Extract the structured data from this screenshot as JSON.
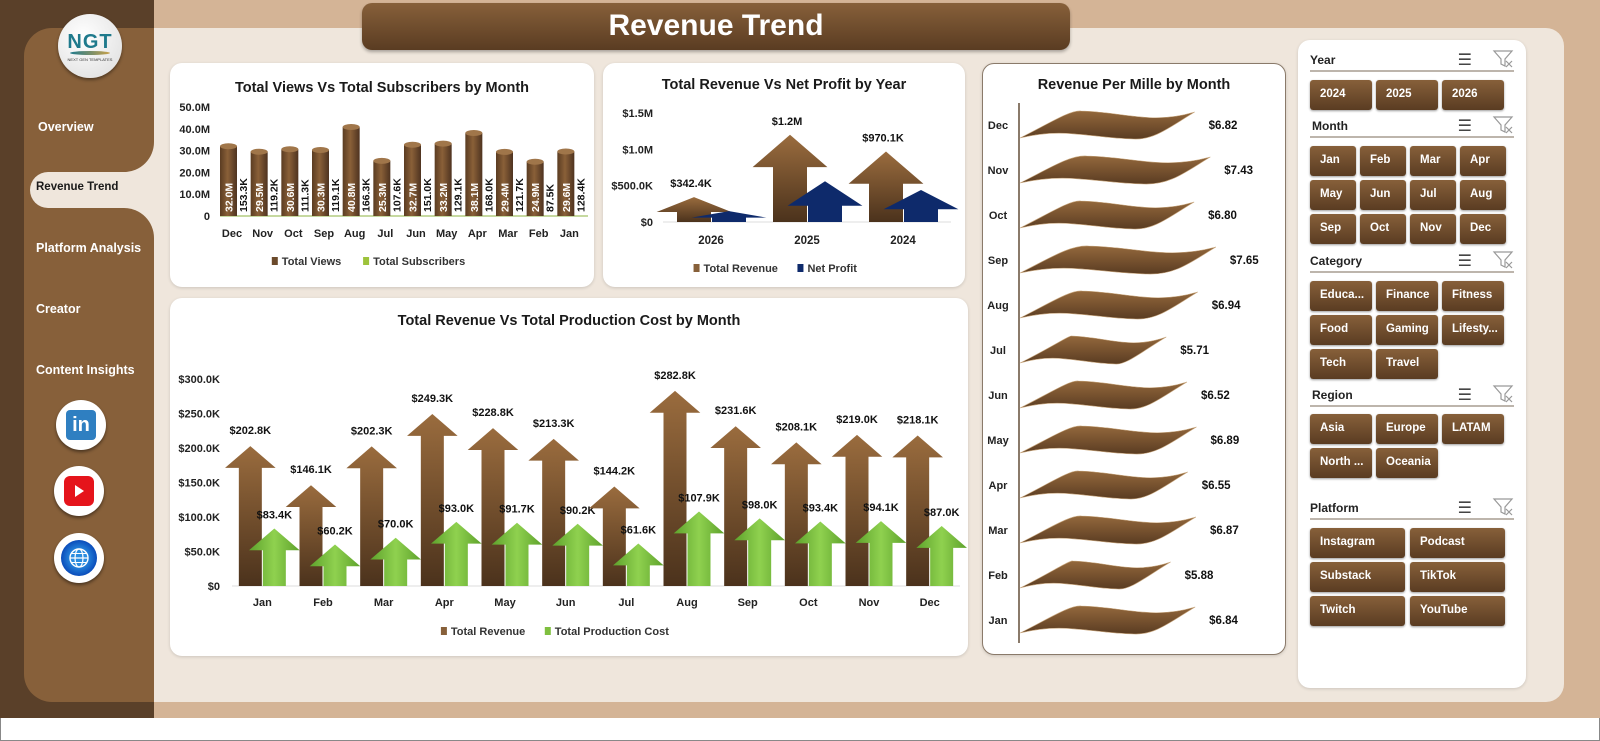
{
  "header": {
    "title": "Revenue Trend"
  },
  "logo": {
    "text": "NGT",
    "subtext": "NEXT GEN TEMPLATES"
  },
  "sidebar": {
    "items": [
      {
        "label": "Overview",
        "active": false
      },
      {
        "label": "Revenue Trend",
        "active": true
      },
      {
        "label": "Platform Analysis",
        "active": false
      },
      {
        "label": "Creator",
        "active": false
      },
      {
        "label": "Content Insights",
        "active": false
      }
    ],
    "social": [
      {
        "icon": "linkedin-icon",
        "label": "in"
      },
      {
        "icon": "youtube-icon"
      },
      {
        "icon": "globe-icon"
      }
    ]
  },
  "colors": {
    "brown": "#87603a",
    "dark_brown": "#5a3c22",
    "green": "#7fbf3f",
    "navy": "#0e2a6b",
    "bg": "#efe6dc"
  },
  "chart_data": [
    {
      "id": "views_subs",
      "type": "bar",
      "title": "Total Views Vs Total Subscribers by Month",
      "categories": [
        "Dec",
        "Nov",
        "Oct",
        "Sep",
        "Aug",
        "Jul",
        "Jun",
        "May",
        "Apr",
        "Mar",
        "Feb",
        "Jan"
      ],
      "series": [
        {
          "name": "Total Views",
          "values": [
            32.0,
            29.5,
            30.6,
            30.3,
            40.8,
            25.3,
            32.7,
            33.2,
            38.1,
            29.4,
            24.9,
            29.6
          ],
          "labels": [
            "32.0M",
            "29.5M",
            "30.6M",
            "30.3M",
            "40.8M",
            "25.3M",
            "32.7M",
            "33.2M",
            "38.1M",
            "29.4M",
            "24.9M",
            "29.6M"
          ],
          "unit": "M",
          "color": "#6b4a2b"
        },
        {
          "name": "Total Subscribers",
          "values": [
            153.3,
            119.2,
            111.3,
            119.1,
            166.3,
            107.6,
            151.0,
            129.1,
            168.0,
            121.7,
            87.5,
            128.4
          ],
          "labels": [
            "153.3K",
            "119.2K",
            "111.3K",
            "119.1K",
            "166.3K",
            "107.6K",
            "151.0K",
            "129.1K",
            "168.0K",
            "121.7K",
            "87.5K",
            "128.4K"
          ],
          "unit": "K",
          "color": "#9dc33b"
        }
      ],
      "yticks": [
        "50.0M",
        "40.0M",
        "30.0M",
        "20.0M",
        "10.0M",
        "0"
      ],
      "ylim": [
        0,
        50
      ],
      "legend_position": "bottom"
    },
    {
      "id": "rev_profit_year",
      "type": "bar",
      "title": "Total Revenue  Vs Net Profit by Year",
      "categories": [
        "2026",
        "2025",
        "2024"
      ],
      "series": [
        {
          "name": "Total Revenue",
          "values": [
            342.4,
            1200,
            970.1
          ],
          "labels": [
            "$342.4K",
            "$1.2M",
            "$970.1K"
          ],
          "color": "#87603a"
        },
        {
          "name": "Net Profit",
          "values": [
            150,
            560,
            440
          ],
          "labels": [
            "",
            "",
            ""
          ],
          "color": "#0e2a6b"
        }
      ],
      "yticks": [
        "$1.5M",
        "$1.0M",
        "$500.0K",
        "$0"
      ],
      "ylim": [
        0,
        1500
      ],
      "legend_position": "bottom"
    },
    {
      "id": "rev_cost_month",
      "type": "bar",
      "title": "Total Revenue  Vs Total Production Cost by Month",
      "categories": [
        "Jan",
        "Feb",
        "Mar",
        "Apr",
        "May",
        "Jun",
        "Jul",
        "Aug",
        "Sep",
        "Oct",
        "Nov",
        "Dec"
      ],
      "series": [
        {
          "name": "Total Revenue",
          "values": [
            202.8,
            146.1,
            202.3,
            249.3,
            228.8,
            213.3,
            144.2,
            282.8,
            231.6,
            208.1,
            219.0,
            218.1
          ],
          "labels": [
            "$202.8K",
            "$146.1K",
            "$202.3K",
            "$249.3K",
            "$228.8K",
            "$213.3K",
            "$144.2K",
            "$282.8K",
            "$231.6K",
            "$208.1K",
            "$219.0K",
            "$218.1K"
          ],
          "color": "#87603a"
        },
        {
          "name": "Total Production Cost",
          "values": [
            83.4,
            60.2,
            70.0,
            93.0,
            91.7,
            90.2,
            61.6,
            107.9,
            98.0,
            93.4,
            94.1,
            87.0
          ],
          "labels": [
            "$83.4K",
            "$60.2K",
            "$70.0K",
            "$93.0K",
            "$91.7K",
            "$90.2K",
            "$61.6K",
            "$107.9K",
            "$98.0K",
            "$93.4K",
            "$94.1K",
            "$87.0K"
          ],
          "color": "#7fbf3f"
        }
      ],
      "yticks": [
        "$300.0K",
        "$250.0K",
        "$200.0K",
        "$150.0K",
        "$100.0K",
        "$50.0K",
        "$0"
      ],
      "ylim": [
        0,
        300
      ],
      "legend_position": "bottom"
    },
    {
      "id": "rpm_month",
      "type": "bar",
      "orientation": "horizontal",
      "title": "Revenue  Per Mille by Month",
      "categories": [
        "Dec",
        "Nov",
        "Oct",
        "Sep",
        "Aug",
        "Jul",
        "Jun",
        "May",
        "Apr",
        "Mar",
        "Feb",
        "Jan"
      ],
      "series": [
        {
          "name": "Revenue Per Mille",
          "values": [
            6.82,
            7.43,
            6.8,
            7.65,
            6.94,
            5.71,
            6.52,
            6.89,
            6.55,
            6.87,
            5.88,
            6.84
          ],
          "labels": [
            "$6.82",
            "$7.43",
            "$6.80",
            "$7.65",
            "$6.94",
            "$5.71",
            "$6.52",
            "$6.89",
            "$6.55",
            "$6.87",
            "$5.88",
            "$6.84"
          ],
          "color": "#87603a"
        }
      ]
    }
  ],
  "slicers": {
    "year": {
      "title": "Year",
      "options": [
        "2024",
        "2025",
        "2026"
      ]
    },
    "month": {
      "title": "Month",
      "options": [
        "Jan",
        "Feb",
        "Mar",
        "Apr",
        "May",
        "Jun",
        "Jul",
        "Aug",
        "Sep",
        "Oct",
        "Nov",
        "Dec"
      ]
    },
    "category": {
      "title": "Category",
      "options": [
        "Educa...",
        "Finance",
        "Fitness",
        "Food",
        "Gaming",
        "Lifesty...",
        "Tech",
        "Travel"
      ]
    },
    "region": {
      "title": "Region",
      "options": [
        "Asia",
        "Europe",
        "LATAM",
        "North ...",
        "Oceania"
      ]
    },
    "platform": {
      "title": "Platform",
      "options": [
        "Instagram",
        "Podcast",
        "Substack",
        "TikTok",
        "Twitch",
        "YouTube"
      ]
    }
  }
}
